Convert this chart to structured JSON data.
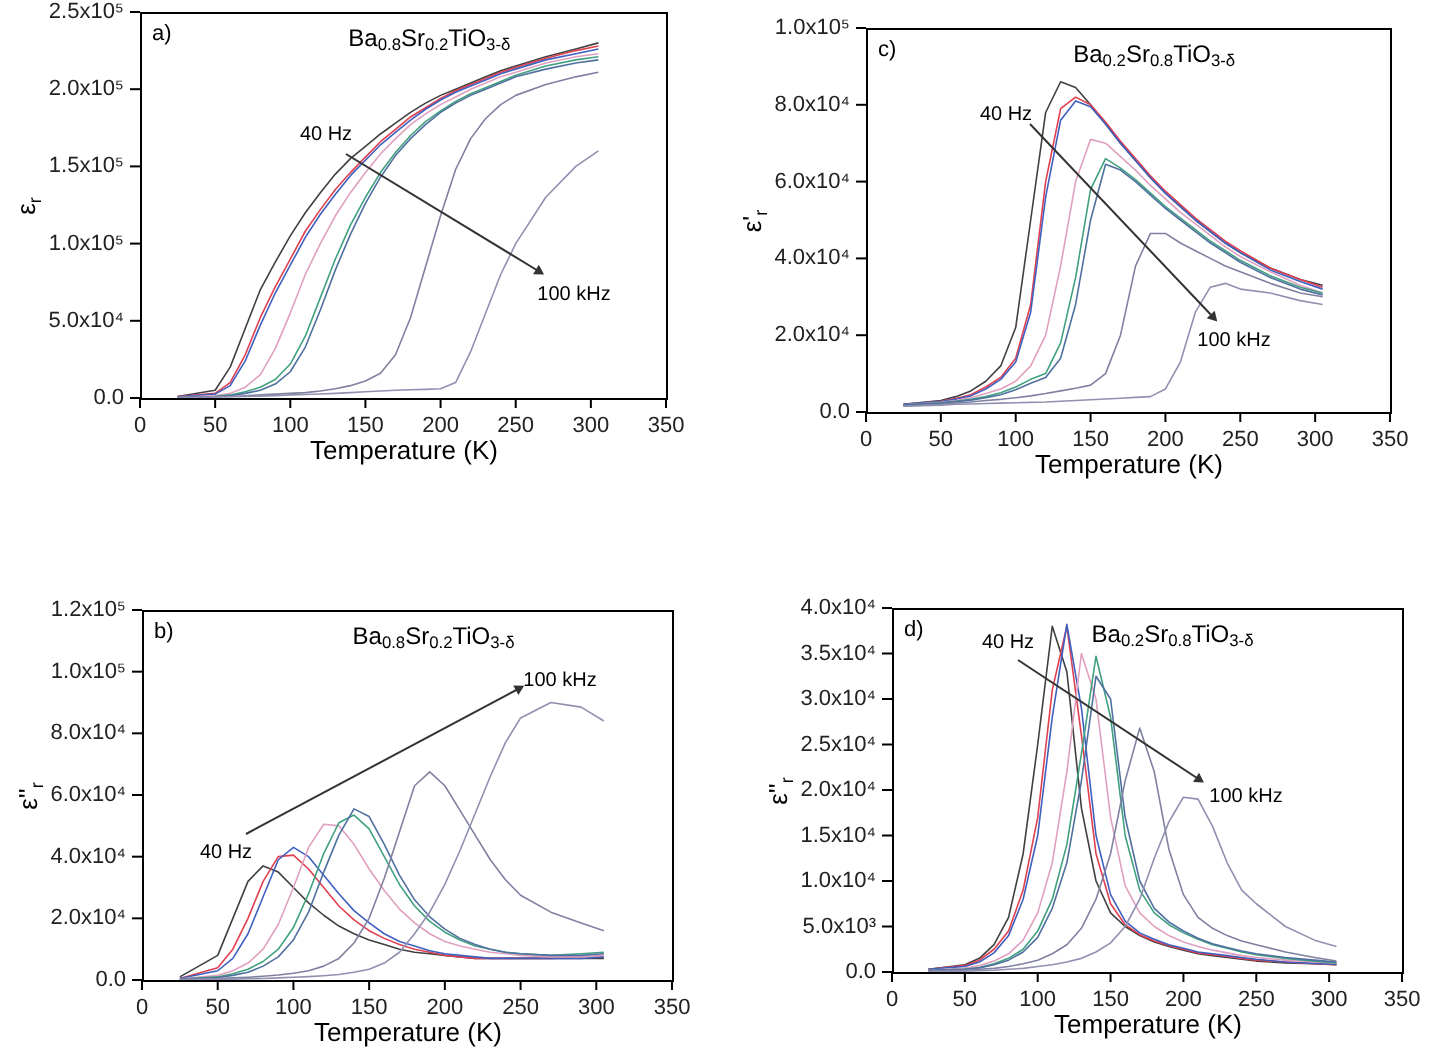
{
  "chart_data": [
    {
      "type": "line",
      "title": "Ba$_{0.8}$Sr$_{0.2}$TiO$_{3-δ}$",
      "xlabel": "Temperature (K)",
      "ylabel": "ε$_{r}$",
      "annotations": [
        "a)",
        "40 Hz",
        "100 kHz"
      ],
      "xlim": [
        0,
        350
      ],
      "xticks": [
        0,
        50,
        100,
        150,
        200,
        250,
        300,
        350
      ],
      "ylim": [
        0,
        250000
      ],
      "yticks": [
        {
          "value": 0,
          "label": "0.0"
        },
        {
          "value": 50000,
          "label": "5.0x10⁴"
        },
        {
          "value": 100000,
          "label": "1.0x10⁵"
        },
        {
          "value": 150000,
          "label": "1.5x10⁵"
        },
        {
          "value": 200000,
          "label": "2.0x10⁵"
        },
        {
          "value": 250000,
          "label": "2.5x10⁵"
        }
      ],
      "x": [
        25,
        50,
        60,
        70,
        80,
        90,
        100,
        110,
        120,
        130,
        140,
        150,
        160,
        170,
        180,
        190,
        200,
        210,
        220,
        230,
        240,
        250,
        270,
        290,
        305
      ],
      "series": [
        {
          "color": "#404040",
          "values": [
            1000,
            5000,
            20000,
            45000,
            70000,
            88000,
            105000,
            120000,
            133000,
            145000,
            155000,
            163000,
            171000,
            178000,
            185000,
            191000,
            196000,
            200000,
            204000,
            208000,
            212000,
            215000,
            221000,
            226000,
            230000
          ]
        },
        {
          "color": "#e04050",
          "values": [
            1000,
            3000,
            10000,
            28000,
            52000,
            72000,
            90000,
            108000,
            122000,
            135000,
            146000,
            156000,
            166000,
            174000,
            182000,
            188000,
            194000,
            199000,
            203000,
            207000,
            211000,
            214000,
            220000,
            225000,
            228000
          ]
        },
        {
          "color": "#4060c0",
          "values": [
            800,
            2500,
            8000,
            24000,
            47000,
            68000,
            86000,
            104000,
            119000,
            132000,
            144000,
            154000,
            164000,
            172000,
            180000,
            187000,
            193000,
            198000,
            202000,
            206000,
            210000,
            213000,
            219000,
            223000,
            226000
          ]
        },
        {
          "color": "#e0a0c0",
          "values": [
            500,
            1500,
            3000,
            7000,
            15000,
            32000,
            55000,
            80000,
            100000,
            118000,
            133000,
            146000,
            158000,
            168000,
            177000,
            184000,
            190000,
            195000,
            200000,
            204000,
            208000,
            211000,
            217000,
            221000,
            223000
          ]
        },
        {
          "color": "#40a080",
          "values": [
            500,
            1000,
            2000,
            4000,
            7000,
            12000,
            22000,
            40000,
            65000,
            90000,
            112000,
            130000,
            146000,
            159000,
            170000,
            179000,
            186000,
            192000,
            197000,
            201000,
            205000,
            209000,
            215000,
            219000,
            221000
          ]
        },
        {
          "color": "#5070a0",
          "values": [
            500,
            1000,
            1500,
            3000,
            5000,
            9000,
            17000,
            33000,
            57000,
            83000,
            106000,
            126000,
            143000,
            157000,
            168000,
            177000,
            185000,
            191000,
            196000,
            200000,
            204000,
            208000,
            213000,
            217000,
            219000
          ]
        },
        {
          "color": "#8080a0",
          "values": [
            300,
            800,
            1000,
            1500,
            2000,
            2500,
            3000,
            3500,
            4500,
            6000,
            8000,
            11000,
            16000,
            28000,
            52000,
            85000,
            118000,
            148000,
            168000,
            181000,
            190000,
            196000,
            203000,
            208000,
            211000
          ]
        },
        {
          "color": "#9090b0",
          "values": [
            300,
            600,
            800,
            1000,
            1200,
            1500,
            2000,
            2300,
            2600,
            3000,
            3500,
            4000,
            4500,
            5000,
            5300,
            5600,
            6000,
            10000,
            30000,
            55000,
            80000,
            100000,
            130000,
            150000,
            160000
          ]
        }
      ]
    },
    {
      "type": "line",
      "title": "Ba$_{0.2}$Sr$_{0.8}$TiO$_{3-δ}$",
      "xlabel": "Temperature (K)",
      "ylabel": "ε'$_{r}$",
      "annotations": [
        "c)",
        "40 Hz",
        "100 kHz"
      ],
      "xlim": [
        0,
        350
      ],
      "xticks": [
        0,
        50,
        100,
        150,
        200,
        250,
        300,
        350
      ],
      "ylim": [
        0,
        100000
      ],
      "yticks": [
        {
          "value": 0,
          "label": "0.0"
        },
        {
          "value": 20000,
          "label": "2.0x10⁴"
        },
        {
          "value": 40000,
          "label": "4.0x10⁴"
        },
        {
          "value": 60000,
          "label": "6.0x10⁴"
        },
        {
          "value": 80000,
          "label": "8.0x10⁴"
        },
        {
          "value": 100000,
          "label": "1.0x10⁵"
        }
      ],
      "x": [
        25,
        50,
        60,
        70,
        80,
        90,
        100,
        110,
        120,
        130,
        140,
        150,
        160,
        170,
        180,
        190,
        200,
        210,
        220,
        230,
        240,
        250,
        270,
        290,
        305
      ],
      "series": [
        {
          "color": "#404040",
          "values": [
            2000,
            3000,
            4000,
            5500,
            8000,
            12000,
            22000,
            50000,
            78000,
            86000,
            84500,
            80000,
            75000,
            70000,
            65500,
            61000,
            57000,
            53500,
            50000,
            47000,
            44000,
            41500,
            37500,
            34500,
            33000
          ]
        },
        {
          "color": "#e04050",
          "values": [
            2000,
            2800,
            3500,
            4500,
            6500,
            9000,
            14000,
            28000,
            60000,
            79000,
            82000,
            80000,
            75500,
            70500,
            66000,
            61500,
            57500,
            54000,
            50500,
            47500,
            44500,
            42000,
            37500,
            34500,
            32500
          ]
        },
        {
          "color": "#4060c0",
          "values": [
            2000,
            2700,
            3300,
            4200,
            6000,
            8500,
            13000,
            26000,
            56000,
            76000,
            81000,
            79500,
            75000,
            70000,
            65500,
            61000,
            57000,
            53500,
            50000,
            47000,
            44000,
            41500,
            37000,
            34000,
            32000
          ]
        },
        {
          "color": "#e0a0c0",
          "values": [
            1800,
            2500,
            3000,
            3700,
            4800,
            6000,
            8000,
            12000,
            20000,
            38000,
            60000,
            71000,
            70000,
            66500,
            63000,
            59000,
            55500,
            52000,
            49000,
            46000,
            43000,
            40500,
            36500,
            33000,
            31000
          ]
        },
        {
          "color": "#40a080",
          "values": [
            1800,
            2400,
            2800,
            3300,
            4000,
            5000,
            6500,
            8500,
            10000,
            18000,
            35000,
            58000,
            66000,
            63500,
            60500,
            57000,
            53500,
            50500,
            47500,
            44500,
            42000,
            39500,
            35500,
            32500,
            31000
          ]
        },
        {
          "color": "#5070a0",
          "values": [
            1800,
            2300,
            2700,
            3100,
            3700,
            4500,
            5800,
            7500,
            9000,
            14000,
            28000,
            50000,
            64500,
            63000,
            60000,
            56500,
            53000,
            50000,
            47000,
            44000,
            41500,
            39000,
            35000,
            32000,
            30500
          ]
        },
        {
          "color": "#8080a0",
          "values": [
            1500,
            2000,
            2300,
            2600,
            3000,
            3300,
            3700,
            4200,
            4800,
            5500,
            6200,
            7000,
            10000,
            20000,
            38000,
            46500,
            46500,
            44000,
            42000,
            40000,
            38000,
            36500,
            33500,
            31000,
            30000
          ]
        },
        {
          "color": "#9090b0",
          "values": [
            1500,
            1800,
            2000,
            2100,
            2200,
            2300,
            2400,
            2500,
            2600,
            2800,
            3000,
            3200,
            3400,
            3600,
            3800,
            4000,
            6000,
            13000,
            26000,
            32500,
            33500,
            32000,
            31000,
            29000,
            28000
          ]
        }
      ]
    },
    {
      "type": "line",
      "title": "Ba$_{0.8}$Sr$_{0.2}$TiO$_{3-δ}$",
      "xlabel": "Temperature (K)",
      "ylabel": "ε''$_{r}$",
      "annotations": [
        "b)",
        "40 Hz",
        "100 kHz"
      ],
      "xlim": [
        0,
        350
      ],
      "xticks": [
        0,
        50,
        100,
        150,
        200,
        250,
        300,
        350
      ],
      "ylim": [
        0,
        120000
      ],
      "yticks": [
        {
          "value": 0,
          "label": "0.0"
        },
        {
          "value": 20000,
          "label": "2.0x10⁴"
        },
        {
          "value": 40000,
          "label": "4.0x10⁴"
        },
        {
          "value": 60000,
          "label": "6.0x10⁴"
        },
        {
          "value": 80000,
          "label": "8.0x10⁴"
        },
        {
          "value": 100000,
          "label": "1.0x10⁵"
        },
        {
          "value": 120000,
          "label": "1.2x10⁵"
        }
      ],
      "x": [
        25,
        50,
        60,
        70,
        80,
        90,
        100,
        110,
        120,
        130,
        140,
        150,
        160,
        170,
        180,
        190,
        200,
        210,
        220,
        230,
        240,
        250,
        270,
        290,
        305
      ],
      "series": [
        {
          "color": "#404040",
          "values": [
            1000,
            8000,
            20000,
            32000,
            37000,
            35000,
            30000,
            25000,
            21000,
            17500,
            15000,
            13000,
            11500,
            10000,
            9000,
            8500,
            8000,
            7500,
            7000,
            7000,
            7000,
            7000,
            7000,
            7000,
            7000
          ]
        },
        {
          "color": "#e04050",
          "values": [
            500,
            4000,
            10000,
            20000,
            32000,
            40000,
            40500,
            36000,
            30000,
            24000,
            19500,
            16000,
            13500,
            11500,
            10000,
            9000,
            8000,
            7500,
            7000,
            7000,
            7000,
            7000,
            7000,
            7500,
            7500
          ]
        },
        {
          "color": "#4060c0",
          "values": [
            500,
            3000,
            7000,
            15000,
            27000,
            39000,
            43000,
            40000,
            34000,
            28000,
            22500,
            18500,
            15000,
            12500,
            11000,
            9500,
            8500,
            8000,
            7500,
            7000,
            7000,
            7000,
            7000,
            7000,
            7500
          ]
        },
        {
          "color": "#e0a0c0",
          "values": [
            300,
            1500,
            3000,
            5500,
            10000,
            18000,
            30000,
            43000,
            50500,
            50000,
            44000,
            36000,
            29000,
            23000,
            18500,
            15000,
            12500,
            11000,
            10000,
            9000,
            8500,
            8000,
            7500,
            7500,
            8000
          ]
        },
        {
          "color": "#40a080",
          "values": [
            300,
            1000,
            2000,
            3500,
            6000,
            10000,
            17000,
            28000,
            41000,
            51000,
            53500,
            49000,
            40000,
            31000,
            24000,
            19000,
            15500,
            13000,
            11000,
            10000,
            9000,
            8500,
            8000,
            8500,
            9000
          ]
        },
        {
          "color": "#5070a0",
          "values": [
            200,
            800,
            1500,
            2500,
            4500,
            7500,
            13000,
            22000,
            35000,
            47000,
            55500,
            53000,
            44000,
            34000,
            26000,
            20500,
            16500,
            13500,
            11500,
            10000,
            9000,
            8500,
            8000,
            8000,
            8500
          ]
        },
        {
          "color": "#8080a0",
          "values": [
            200,
            500,
            700,
            900,
            1200,
            1600,
            2200,
            3000,
            4500,
            7000,
            12000,
            20000,
            33000,
            48000,
            63000,
            67500,
            63000,
            55000,
            47000,
            39000,
            32500,
            27500,
            22000,
            18500,
            16000
          ]
        },
        {
          "color": "#9090b0",
          "values": [
            100,
            200,
            300,
            400,
            500,
            700,
            900,
            1100,
            1400,
            1800,
            2500,
            3500,
            5500,
            9000,
            15000,
            22000,
            31000,
            42000,
            54000,
            66000,
            77000,
            85000,
            90000,
            88500,
            84000
          ]
        }
      ]
    },
    {
      "type": "line",
      "title": "Ba$_{0.2}$Sr$_{0.8}$TiO$_{3-δ}$",
      "xlabel": "Temperature (K)",
      "ylabel": "ε''$_{r}$",
      "annotations": [
        "d)",
        "40 Hz",
        "100 kHz"
      ],
      "xlim": [
        0,
        350
      ],
      "xticks": [
        0,
        50,
        100,
        150,
        200,
        250,
        300,
        350
      ],
      "ylim": [
        0,
        40000
      ],
      "yticks": [
        {
          "value": 0,
          "label": "0.0"
        },
        {
          "value": 5000,
          "label": "5.0x10³"
        },
        {
          "value": 10000,
          "label": "1.0x10⁴"
        },
        {
          "value": 15000,
          "label": "1.5x10⁴"
        },
        {
          "value": 20000,
          "label": "2.0x10⁴"
        },
        {
          "value": 25000,
          "label": "2.5x10⁴"
        },
        {
          "value": 30000,
          "label": "3.0x10⁴"
        },
        {
          "value": 35000,
          "label": "3.5x10⁴"
        },
        {
          "value": 40000,
          "label": "4.0x10⁴"
        }
      ],
      "x": [
        25,
        50,
        60,
        70,
        80,
        90,
        100,
        110,
        120,
        130,
        140,
        150,
        160,
        170,
        180,
        190,
        200,
        210,
        220,
        230,
        240,
        250,
        270,
        290,
        305
      ],
      "series": [
        {
          "color": "#404040",
          "values": [
            300,
            800,
            1500,
            3000,
            6000,
            13000,
            25000,
            38000,
            33000,
            18000,
            10000,
            6500,
            5000,
            4000,
            3300,
            2800,
            2400,
            2000,
            1800,
            1600,
            1400,
            1200,
            1000,
            900,
            800
          ]
        },
        {
          "color": "#e04050",
          "values": [
            300,
            700,
            1300,
            2500,
            4500,
            9000,
            17000,
            31000,
            38000,
            26000,
            13000,
            7500,
            5200,
            4100,
            3400,
            2900,
            2500,
            2100,
            1900,
            1700,
            1500,
            1300,
            1100,
            900,
            800
          ]
        },
        {
          "color": "#4060c0",
          "values": [
            300,
            600,
            1100,
            2100,
            4000,
            8000,
            15000,
            28000,
            38200,
            29000,
            15000,
            8500,
            5600,
            4300,
            3600,
            3000,
            2600,
            2200,
            2000,
            1800,
            1600,
            1400,
            1100,
            950,
            850
          ]
        },
        {
          "color": "#e0a0c0",
          "values": [
            200,
            400,
            700,
            1200,
            2000,
            3500,
            6500,
            12000,
            22000,
            35000,
            30000,
            17000,
            9500,
            6500,
            5000,
            4000,
            3300,
            2800,
            2400,
            2100,
            1800,
            1600,
            1300,
            1100,
            1000
          ]
        },
        {
          "color": "#40a080",
          "values": [
            200,
            300,
            500,
            900,
            1500,
            2500,
            4500,
            8000,
            14000,
            24000,
            34700,
            28000,
            15000,
            9000,
            6500,
            5200,
            4300,
            3600,
            3000,
            2600,
            2200,
            1900,
            1500,
            1200,
            1000
          ]
        },
        {
          "color": "#5070a0",
          "values": [
            200,
            300,
            450,
            800,
            1300,
            2200,
            3800,
            7000,
            12000,
            21000,
            32500,
            30000,
            17000,
            10000,
            7000,
            5500,
            4500,
            3700,
            3100,
            2700,
            2300,
            2000,
            1600,
            1300,
            1100
          ]
        },
        {
          "color": "#8080a0",
          "values": [
            100,
            200,
            300,
            400,
            600,
            900,
            1300,
            2000,
            3000,
            4800,
            8000,
            13000,
            21000,
            26800,
            22000,
            13500,
            8500,
            6000,
            4800,
            4000,
            3400,
            3000,
            2200,
            1600,
            1200
          ]
        },
        {
          "color": "#9090b0",
          "values": [
            50,
            100,
            150,
            200,
            300,
            400,
            600,
            800,
            1100,
            1500,
            2200,
            3200,
            5000,
            8000,
            12500,
            16500,
            19200,
            19000,
            16000,
            12000,
            9000,
            7500,
            5000,
            3500,
            2800
          ]
        }
      ]
    }
  ]
}
